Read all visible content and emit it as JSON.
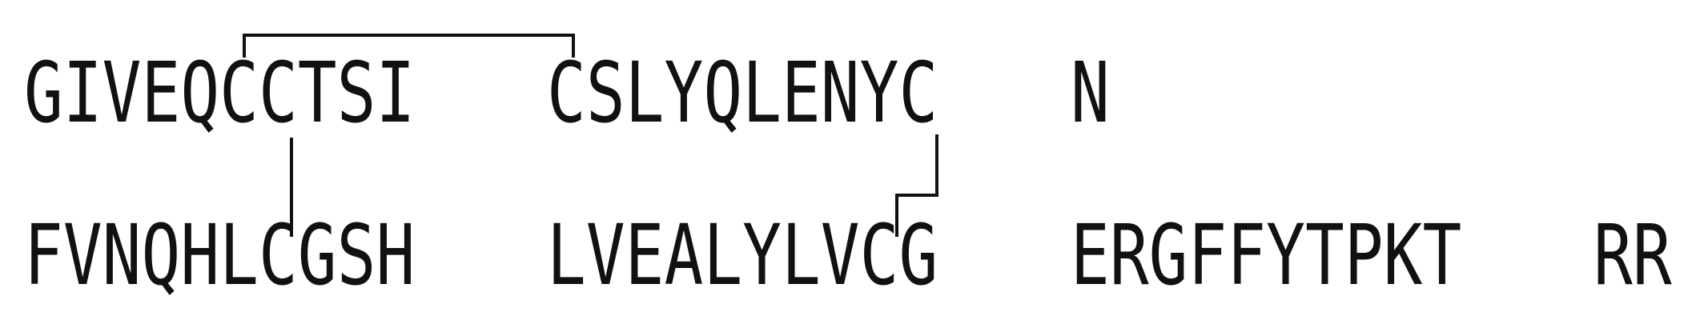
{
  "chain_a": {
    "segments": [
      "GIVEQCCTSI",
      "CSLYQLENYC",
      "N"
    ]
  },
  "chain_b": {
    "segments": [
      "FVNQHLCGSH",
      "LVEALYLVCG",
      "ERGFFYTPKT",
      "RR"
    ]
  },
  "disulfide_bonds": [
    {
      "from": "A6",
      "to": "A11",
      "type": "intrachain"
    },
    {
      "from": "A7",
      "to": "B7",
      "type": "interchain"
    },
    {
      "from": "A20",
      "to": "B19",
      "type": "interchain"
    }
  ],
  "colors": {
    "text": "#111111",
    "bond": "#111111",
    "background": "#ffffff"
  }
}
